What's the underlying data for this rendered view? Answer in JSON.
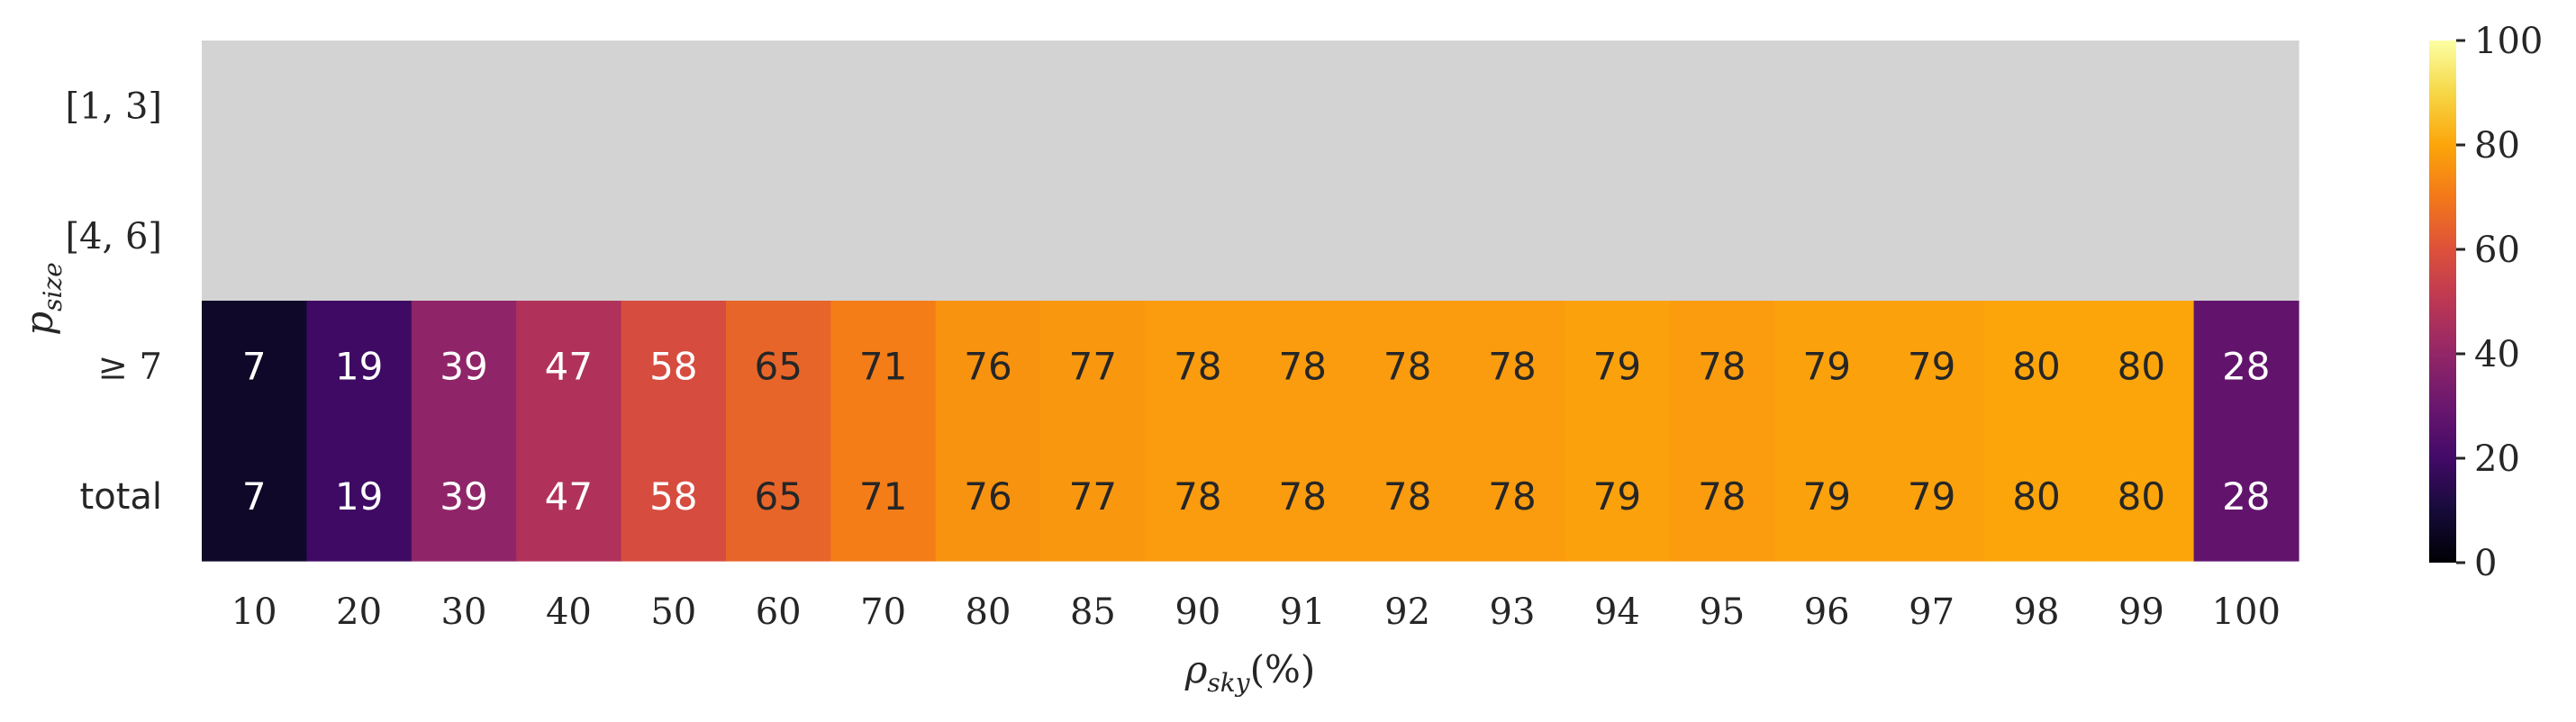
{
  "chart_data": {
    "type": "heatmap",
    "title": "",
    "xlabel": "ρ_sky(%)",
    "ylabel": "p_size",
    "x_categories": [
      "10",
      "20",
      "30",
      "40",
      "50",
      "60",
      "70",
      "80",
      "85",
      "90",
      "91",
      "92",
      "93",
      "94",
      "95",
      "96",
      "97",
      "98",
      "99",
      "100"
    ],
    "y_categories": [
      "[1, 3]",
      "[4, 6]",
      "≥ 7",
      "total"
    ],
    "values": [
      [
        null,
        null,
        null,
        null,
        null,
        null,
        null,
        null,
        null,
        null,
        null,
        null,
        null,
        null,
        null,
        null,
        null,
        null,
        null,
        null
      ],
      [
        null,
        null,
        null,
        null,
        null,
        null,
        null,
        null,
        null,
        null,
        null,
        null,
        null,
        null,
        null,
        null,
        null,
        null,
        null,
        null
      ],
      [
        7,
        19,
        39,
        47,
        58,
        65,
        71,
        76,
        77,
        78,
        78,
        78,
        78,
        79,
        78,
        79,
        79,
        80,
        80,
        28
      ],
      [
        7,
        19,
        39,
        47,
        58,
        65,
        71,
        76,
        77,
        78,
        78,
        78,
        78,
        79,
        78,
        79,
        79,
        80,
        80,
        28
      ]
    ],
    "missing_color": "#d3d3d3",
    "colormap": "inferno",
    "colorbar": {
      "range": [
        0,
        100
      ],
      "ticks": [
        "0",
        "20",
        "40",
        "60",
        "80",
        "100"
      ],
      "placement": "right"
    }
  }
}
